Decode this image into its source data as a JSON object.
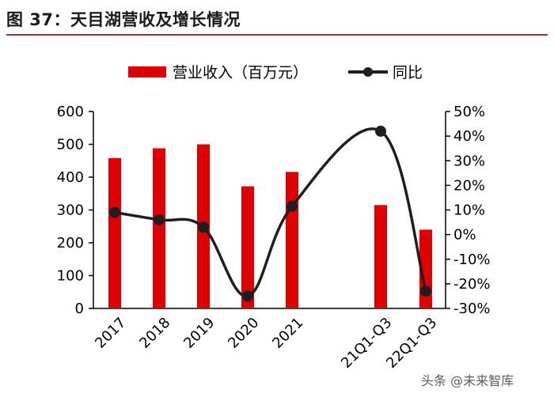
{
  "figure_title": "图 37：天目湖营收及增长情况",
  "watermark": "头条 @未来智库",
  "chart_data": {
    "type": "bar",
    "categories": [
      "2017",
      "2018",
      "2019",
      "2020",
      "2021",
      "21Q1-Q3",
      "22Q1-Q3"
    ],
    "series": [
      {
        "name": "营业收入（百万元）",
        "type": "bar",
        "axis": "left",
        "values": [
          458,
          488,
          500,
          372,
          416,
          315,
          240
        ],
        "color": "#e00000"
      },
      {
        "name": "同比",
        "type": "line",
        "axis": "right",
        "values": [
          0.09,
          0.06,
          0.03,
          -0.25,
          0.115,
          0.42,
          -0.23
        ],
        "color": "#1f1f1f"
      }
    ],
    "left_axis": {
      "min": 0,
      "max": 600,
      "ticks": [
        "0",
        "100",
        "200",
        "300",
        "400",
        "500",
        "600"
      ]
    },
    "right_axis": {
      "min": -0.3,
      "max": 0.5,
      "ticks": [
        "-30%",
        "-20%",
        "-10%",
        "0%",
        "10%",
        "20%",
        "30%",
        "40%",
        "50%"
      ]
    },
    "legend_position": "top",
    "grid": false
  }
}
